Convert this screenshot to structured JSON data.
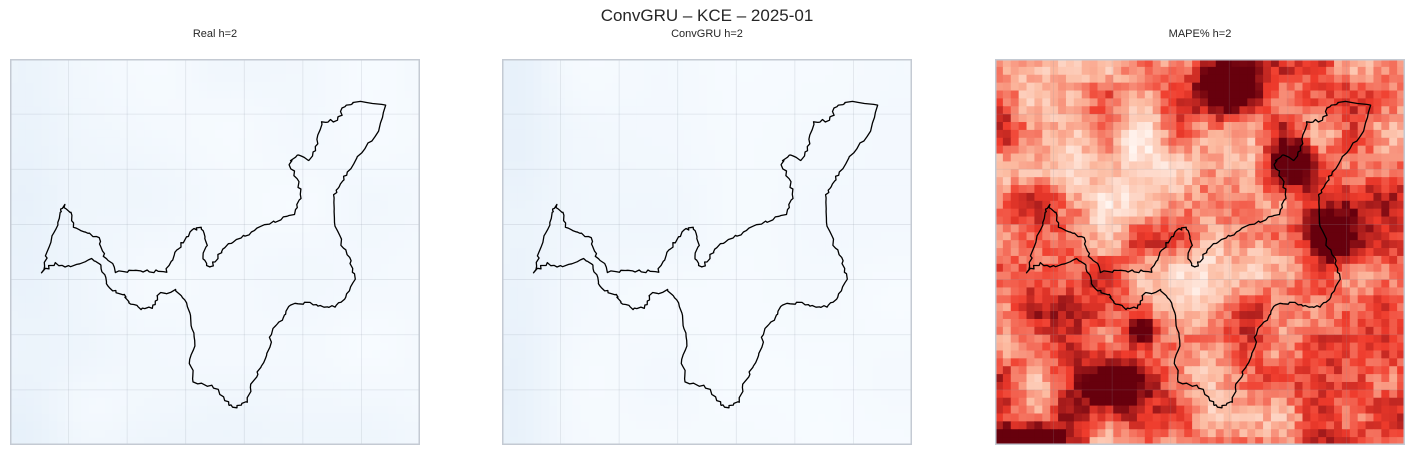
{
  "figure": {
    "title": "ConvGRU – KCE – 2025-01"
  },
  "chart_data": [
    {
      "type": "heatmap",
      "title": "Real h=2",
      "colormap": "Blues",
      "colormap_colors": [
        "#f7fbff",
        "#c6dbef"
      ],
      "grid": true,
      "axis_ticks": false,
      "overlay": "region-boundary"
    },
    {
      "type": "heatmap",
      "title": "ConvGRU h=2",
      "colormap": "Blues",
      "colormap_colors": [
        "#f7fbff",
        "#c6dbef"
      ],
      "grid": true,
      "axis_ticks": false,
      "overlay": "region-boundary"
    },
    {
      "type": "heatmap",
      "title": "MAPE% h=2",
      "colormap": "Reds",
      "colormap_colors": [
        "#fff5f0",
        "#fcbba1",
        "#ef3b2c",
        "#67000d"
      ],
      "grid": true,
      "axis_ticks": false,
      "overlay": "region-boundary"
    }
  ]
}
